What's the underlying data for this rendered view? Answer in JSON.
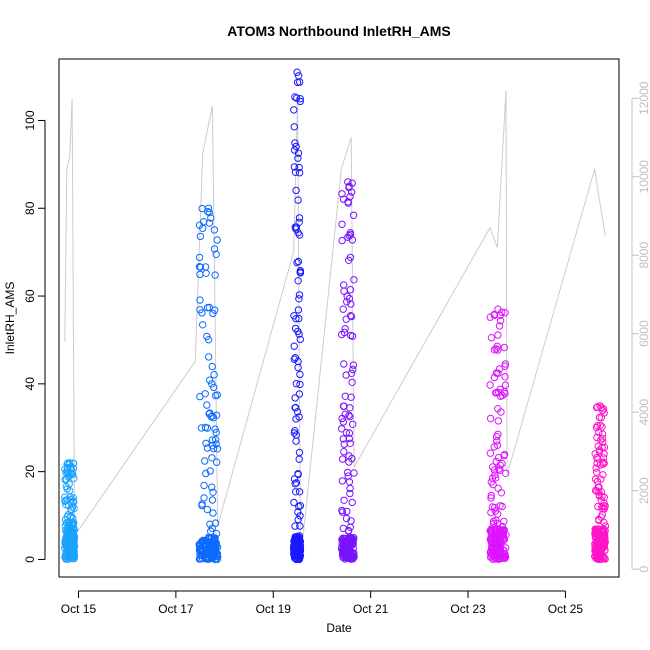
{
  "chart_data": {
    "type": "scatter",
    "title": "ATOM3 Northbound InletRH_AMS",
    "xlabel": "Date",
    "ylabel": "InletRH_AMS",
    "ylim": [
      -4,
      114
    ],
    "y2lim": [
      -200,
      13000
    ],
    "xlim": [
      14.6,
      26.1
    ],
    "x_ticks": [
      {
        "label": "Oct 15",
        "day": 15
      },
      {
        "label": "Oct 17",
        "day": 17
      },
      {
        "label": "Oct 19",
        "day": 19
      },
      {
        "label": "Oct 21",
        "day": 21
      },
      {
        "label": "Oct 23",
        "day": 23
      },
      {
        "label": "Oct 25",
        "day": 25
      }
    ],
    "y_ticks": [
      0,
      20,
      40,
      60,
      80,
      100
    ],
    "y2_ticks": [
      0,
      2000,
      4000,
      6000,
      8000,
      10000,
      12000
    ],
    "series": [
      {
        "color": "#1aa3ff",
        "start": 14.72,
        "end": 14.92,
        "max_y": 22,
        "dense_max": 7
      },
      {
        "color": "#0d6bff",
        "start": 17.48,
        "end": 17.86,
        "max_y": 80,
        "dense_max": 5
      },
      {
        "color": "#1a1aff",
        "start": 19.42,
        "end": 19.56,
        "max_y": 111,
        "dense_max": 5
      },
      {
        "color": "#7a14ff",
        "start": 20.4,
        "end": 20.66,
        "max_y": 86,
        "dense_max": 5
      },
      {
        "color": "#dd14ff",
        "start": 23.45,
        "end": 23.78,
        "max_y": 57,
        "dense_max": 7
      },
      {
        "color": "#ff14c8",
        "start": 25.6,
        "end": 25.82,
        "max_y": 35,
        "dense_max": 7
      }
    ],
    "secondary_series": {
      "color": "#cccccc",
      "points": [
        [
          14.72,
          5800
        ],
        [
          14.76,
          10200
        ],
        [
          14.82,
          10500
        ],
        [
          14.87,
          12000
        ],
        [
          14.92,
          850
        ],
        [
          17.4,
          5300
        ],
        [
          17.55,
          10600
        ],
        [
          17.75,
          11800
        ],
        [
          17.86,
          1100
        ],
        [
          19.42,
          8100
        ],
        [
          19.5,
          12000
        ],
        [
          19.56,
          200
        ],
        [
          20.4,
          10200
        ],
        [
          20.6,
          11000
        ],
        [
          20.66,
          2600
        ],
        [
          23.45,
          8700
        ],
        [
          23.6,
          8200
        ],
        [
          23.78,
          12200
        ],
        [
          23.8,
          2400
        ],
        [
          25.6,
          10200
        ],
        [
          25.7,
          9400
        ],
        [
          25.82,
          8500
        ]
      ]
    },
    "grid": false
  }
}
